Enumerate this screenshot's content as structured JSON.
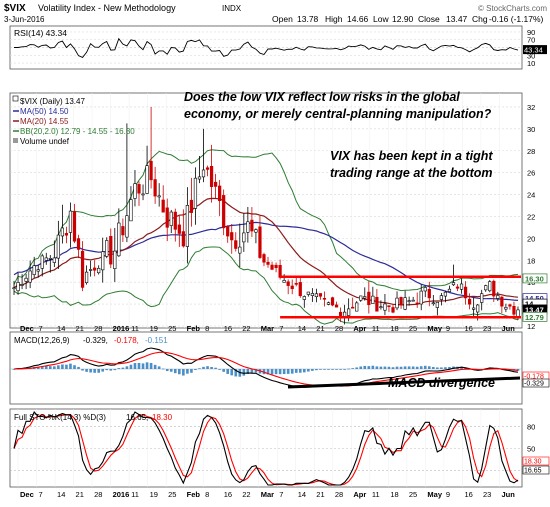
{
  "header": {
    "symbol": "$VIX",
    "name": "Volatility Index - New Methodology",
    "exchange": "INDX",
    "date": "3-Jun-2016",
    "open_label": "Open",
    "open": "13.78",
    "high_label": "High",
    "high": "14.66",
    "low_label": "Low",
    "low": "12.90",
    "close_label": "Close",
    "close": "13.47",
    "chg_label": "Chg",
    "chg": "-0.16 (-1.17%)",
    "watermark": "© StockCharts.com"
  },
  "rsi": {
    "label": "RSI(14) 43.34",
    "value": 43.34,
    "ticks": [
      90,
      70,
      50,
      30,
      10
    ],
    "ylim": [
      0,
      100
    ],
    "badge": "43.34"
  },
  "price": {
    "legend": [
      {
        "text": "$VIX (Daily) 13.47",
        "color": "#000000"
      },
      {
        "text": "MA(50) 14.50",
        "color": "#2b2b9a"
      },
      {
        "text": "MA(20) 14.55",
        "color": "#8b1a1a"
      },
      {
        "text": "BB(20,2.0) 12.79 - 14.55 - 16.30",
        "color": "#2e7d32"
      },
      {
        "text": "Volume undef",
        "color": "#000000"
      }
    ],
    "yticks": [
      32,
      30,
      28,
      26,
      24,
      22,
      20,
      18,
      16,
      14,
      12
    ],
    "ylim": [
      12,
      33
    ],
    "badges": [
      {
        "value": 16.3,
        "text": "16.30",
        "color": "#2e7d32",
        "bg": "#ffffff"
      },
      {
        "value": 14.5,
        "text": "14.50",
        "color": "#2b2b9a",
        "bg": "#ffffff"
      },
      {
        "value": 14.0,
        "text": "14",
        "color": "#000000",
        "bg": "#ffffff"
      },
      {
        "value": 13.47,
        "text": "13.47",
        "color": "#ffffff",
        "bg": "#000000"
      },
      {
        "value": 12.79,
        "text": "12.79",
        "color": "#2e7d32",
        "bg": "#ffffff"
      }
    ],
    "range_top": 16.5,
    "range_bottom": 12.8,
    "annotation_1": "Does the low VIX reflect low risks in the global economy, or merely central-planning manipulation?",
    "annotation_2": "VIX has been kept in a tight trading range at the bottom"
  },
  "macd": {
    "label_prefix": "MACD(12,26,9)",
    "v1": "-0.329,",
    "v2": "-0.178,",
    "v3": "-0.151",
    "ylim": [
      -3.2,
      3.2
    ],
    "badges": [
      {
        "text": "-0.178",
        "color": "#ff0000"
      },
      {
        "text": "-0.329",
        "color": "#000000"
      }
    ],
    "annotation": "MACD divergence"
  },
  "sto": {
    "label_prefix": "Full STO %K(14,3) %D(3)",
    "k_val": "16.65,",
    "d_val": "18.30",
    "ticks": [
      80,
      50,
      20
    ],
    "ylim": [
      0,
      100
    ],
    "badges": [
      {
        "text": "18.30",
        "color": "#ff0000"
      },
      {
        "text": "16.65",
        "color": "#000000"
      }
    ]
  },
  "axis": {
    "labels": [
      "Dec",
      "7",
      "14",
      "21",
      "28",
      "2016",
      "11",
      "19",
      "25",
      "Feb",
      "8",
      "16",
      "22",
      "Mar",
      "7",
      "14",
      "21",
      "28",
      "Apr",
      "11",
      "18",
      "25",
      "May",
      "9",
      "16",
      "23",
      "Jun"
    ]
  },
  "colors": {
    "up": "#ffffff",
    "down": "#cc0000",
    "ma50": "#2b2b9a",
    "ma20": "#8b1a1a",
    "bb": "#2e7d32",
    "range": "#ff0000",
    "hist": "#4a90c8",
    "stoK": "#000000",
    "stoD": "#ff0000"
  },
  "chart_data": {
    "type": "line",
    "title": "$VIX Volatility Index - New Methodology INDX",
    "x": [
      "Dec",
      "7",
      "14",
      "21",
      "28",
      "2016",
      "11",
      "19",
      "25",
      "Feb",
      "8",
      "16",
      "22",
      "Mar",
      "7",
      "14",
      "21",
      "28",
      "Apr",
      "11",
      "18",
      "25",
      "May",
      "9",
      "16",
      "23",
      "Jun"
    ],
    "series": [
      {
        "name": "$VIX (Daily)",
        "values": [
          15.5,
          18.5,
          22.5,
          16.5,
          18.2,
          19.0,
          24.0,
          25.5,
          22.0,
          20.5,
          25.5,
          24.0,
          20.0,
          18.5,
          17.0,
          16.5,
          14.5,
          14.0,
          13.8,
          14.0,
          14.5,
          14.0,
          14.5,
          15.0,
          15.2,
          14.5,
          13.47
        ]
      },
      {
        "name": "MA(50)",
        "values": [
          17.5,
          17.8,
          18.0,
          18.2,
          18.3,
          18.5,
          19.0,
          19.6,
          20.2,
          20.6,
          21.2,
          21.6,
          21.8,
          21.4,
          20.5,
          19.2,
          18.0,
          17.0,
          16.0,
          15.3,
          14.9,
          14.8,
          14.9,
          14.8,
          14.7,
          14.6,
          14.5
        ]
      },
      {
        "name": "MA(20)",
        "values": [
          16.8,
          17.2,
          18.0,
          18.4,
          18.6,
          19.0,
          20.6,
          22.2,
          22.8,
          22.2,
          22.6,
          22.8,
          21.5,
          19.8,
          17.6,
          15.8,
          14.7,
          14.4,
          14.4,
          14.6,
          14.5,
          14.4,
          14.6,
          14.8,
          14.9,
          14.8,
          14.55
        ]
      }
    ],
    "ylim": [
      12,
      33
    ]
  }
}
